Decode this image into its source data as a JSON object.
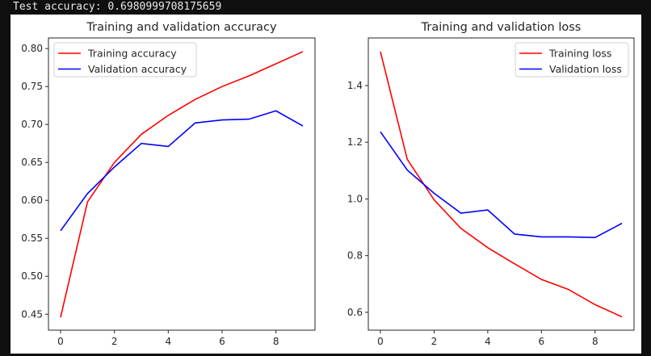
{
  "output_text": "Test accuracy: 0.6980999708175659",
  "chart_data": [
    {
      "type": "line",
      "title": "Training and validation accuracy",
      "x": [
        0,
        1,
        2,
        3,
        4,
        5,
        6,
        7,
        8,
        9
      ],
      "xlim": [
        -0.45,
        9.45
      ],
      "ylim": [
        0.429,
        0.814
      ],
      "xticks": [
        "0",
        "2",
        "4",
        "6",
        "8"
      ],
      "yticks": [
        "0.45",
        "0.50",
        "0.55",
        "0.60",
        "0.65",
        "0.70",
        "0.75",
        "0.80"
      ],
      "legend": "top-left",
      "grid": false,
      "series": [
        {
          "name": "Training accuracy",
          "color": "#ff0000",
          "values": [
            0.446,
            0.598,
            0.65,
            0.687,
            0.712,
            0.733,
            0.75,
            0.764,
            0.78,
            0.796
          ]
        },
        {
          "name": "Validation accuracy",
          "color": "#0000ff",
          "values": [
            0.56,
            0.609,
            0.644,
            0.675,
            0.671,
            0.702,
            0.706,
            0.707,
            0.718,
            0.698
          ]
        }
      ]
    },
    {
      "type": "line",
      "title": "Training and validation loss",
      "x": [
        0,
        1,
        2,
        3,
        4,
        5,
        6,
        7,
        8,
        9
      ],
      "xlim": [
        -0.45,
        9.45
      ],
      "ylim": [
        0.537,
        1.568
      ],
      "xticks": [
        "0",
        "2",
        "4",
        "6",
        "8"
      ],
      "yticks": [
        "0.6",
        "0.8",
        "1.0",
        "1.2",
        "1.4"
      ],
      "legend": "top-right",
      "grid": false,
      "series": [
        {
          "name": "Training loss",
          "color": "#ff0000",
          "values": [
            1.52,
            1.14,
            0.997,
            0.896,
            0.828,
            0.771,
            0.716,
            0.681,
            0.627,
            0.584
          ]
        },
        {
          "name": "Validation loss",
          "color": "#0000ff",
          "values": [
            1.237,
            1.102,
            1.02,
            0.95,
            0.961,
            0.876,
            0.866,
            0.866,
            0.864,
            0.914
          ]
        }
      ]
    }
  ]
}
